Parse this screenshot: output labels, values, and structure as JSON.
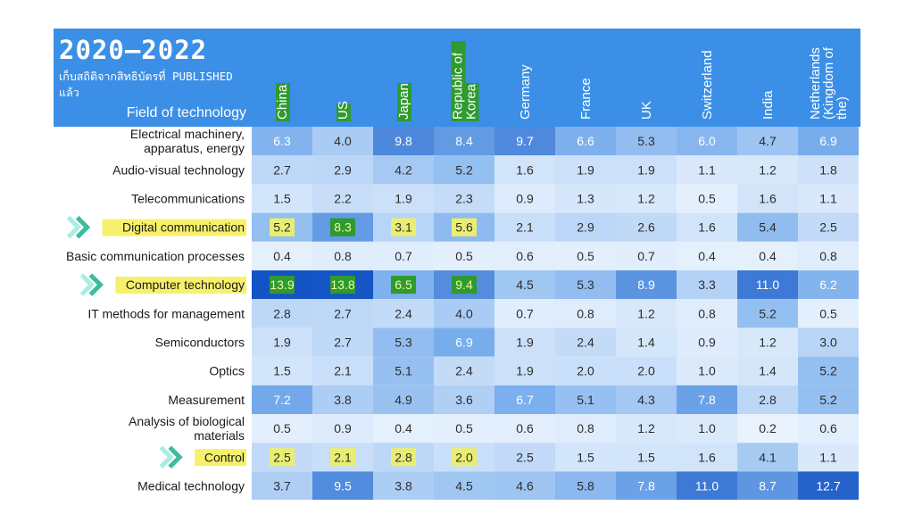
{
  "chart_data": {
    "type": "heatmap",
    "title": "2020–2022",
    "subtitle": [
      "เก็บสถิติจากสิทธิบัตรที่ PUBLISHED",
      "แล้ว"
    ],
    "row_header": "Field of technology",
    "columns": [
      "China",
      "US",
      "Japan",
      "Republic of Korea",
      "Germany",
      "France",
      "UK",
      "Switzerland",
      "India",
      "Netherlands (Kingdom of the)"
    ],
    "highlighted_columns": [
      "China",
      "US",
      "Japan",
      "Republic of Korea"
    ],
    "rows": [
      {
        "label": "Electrical machinery, apparatus, energy",
        "values": [
          6.3,
          4.0,
          9.8,
          8.4,
          9.7,
          6.6,
          5.3,
          6.0,
          4.7,
          6.9
        ],
        "highlight": false
      },
      {
        "label": "Audio-visual technology",
        "values": [
          2.7,
          2.9,
          4.2,
          5.2,
          1.6,
          1.9,
          1.9,
          1.1,
          1.2,
          1.8
        ],
        "highlight": false
      },
      {
        "label": "Telecommunications",
        "values": [
          1.5,
          2.2,
          1.9,
          2.3,
          0.9,
          1.3,
          1.2,
          0.5,
          1.6,
          1.1
        ],
        "highlight": false
      },
      {
        "label": "Digital communication",
        "values": [
          5.2,
          8.3,
          3.1,
          5.6,
          2.1,
          2.9,
          2.6,
          1.6,
          5.4,
          2.5
        ],
        "highlight": true
      },
      {
        "label": "Basic communication processes",
        "values": [
          0.4,
          0.8,
          0.7,
          0.5,
          0.6,
          0.5,
          0.7,
          0.4,
          0.4,
          0.8
        ],
        "highlight": false
      },
      {
        "label": "Computer technology",
        "values": [
          13.9,
          13.8,
          6.5,
          9.4,
          4.5,
          5.3,
          8.9,
          3.3,
          11.0,
          6.2
        ],
        "highlight": true
      },
      {
        "label": "IT methods for management",
        "values": [
          2.8,
          2.7,
          2.4,
          4.0,
          0.7,
          0.8,
          1.2,
          0.8,
          5.2,
          0.5
        ],
        "highlight": false
      },
      {
        "label": "Semiconductors",
        "values": [
          1.9,
          2.7,
          5.3,
          6.9,
          1.9,
          2.4,
          1.4,
          0.9,
          1.2,
          3.0
        ],
        "highlight": false
      },
      {
        "label": "Optics",
        "values": [
          1.5,
          2.1,
          5.1,
          2.4,
          1.9,
          2.0,
          2.0,
          1.0,
          1.4,
          5.2
        ],
        "highlight": false
      },
      {
        "label": "Measurement",
        "values": [
          7.2,
          3.8,
          4.9,
          3.6,
          6.7,
          5.1,
          4.3,
          7.8,
          2.8,
          5.2
        ],
        "highlight": false
      },
      {
        "label": "Analysis of biological materials",
        "values": [
          0.5,
          0.9,
          0.4,
          0.5,
          0.6,
          0.8,
          1.2,
          1.0,
          0.2,
          0.6
        ],
        "highlight": false
      },
      {
        "label": "Control",
        "values": [
          2.5,
          2.1,
          2.8,
          2.0,
          2.5,
          1.5,
          1.5,
          1.6,
          4.1,
          1.1
        ],
        "highlight": true
      },
      {
        "label": "Medical technology",
        "values": [
          3.7,
          9.5,
          3.8,
          4.5,
          4.6,
          5.8,
          7.8,
          11.0,
          8.7,
          12.7
        ],
        "highlight": false
      }
    ],
    "colors": {
      "header_bg": "#3b8fe6",
      "title_green": "#9be26b",
      "label_highlight": "#f7f06b",
      "column_highlight_green": "#2f9a2f",
      "column_highlight_yellow": "#e9ee72",
      "arrow_light": "#a8eee0",
      "arrow_dark": "#3dbb9c"
    }
  }
}
